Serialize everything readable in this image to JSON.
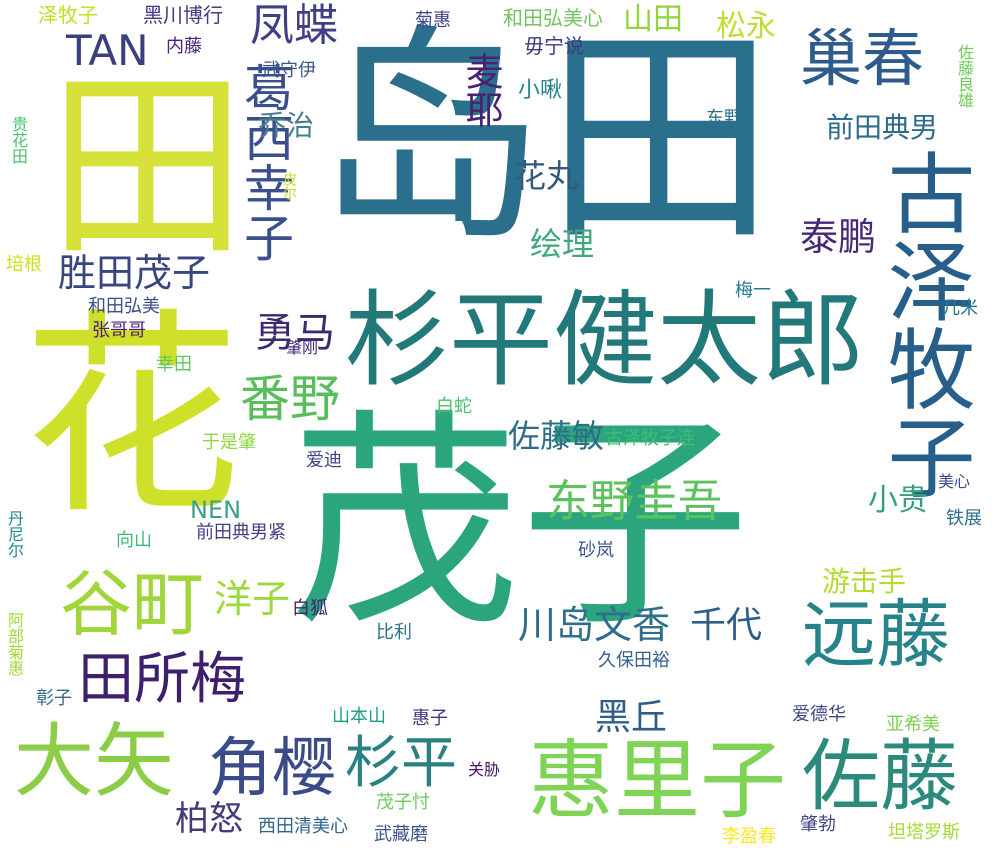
{
  "words": [
    {
      "text": "茂子",
      "color": "#2ba57e",
      "vertical": false
    },
    {
      "text": "岛田",
      "color": "#2a6f8c",
      "vertical": false
    },
    {
      "text": "田",
      "color": "#d6e23a",
      "vertical": true
    },
    {
      "text": "花",
      "color": "#cfe02b",
      "vertical": true
    },
    {
      "text": "杉平健太郎",
      "color": "#23797a",
      "vertical": false
    },
    {
      "text": "古泽牧子",
      "color": "#275f8a",
      "vertical": true
    },
    {
      "text": "惠里子",
      "color": "#7fd456",
      "vertical": false
    },
    {
      "text": "佐藤",
      "color": "#2c8a7c",
      "vertical": false
    },
    {
      "text": "大矢",
      "color": "#8ccd48",
      "vertical": false
    },
    {
      "text": "远藤",
      "color": "#27838a",
      "vertical": false
    },
    {
      "text": "巢春",
      "color": "#2e5b8c",
      "vertical": false
    },
    {
      "text": "谷町",
      "color": "#a1d53a",
      "vertical": false
    },
    {
      "text": "角樱",
      "color": "#3b4b89",
      "vertical": false
    },
    {
      "text": "葛西幸子",
      "color": "#3b4f8c",
      "vertical": true
    },
    {
      "text": "田所梅",
      "color": "#3d1f6e",
      "vertical": false
    },
    {
      "text": "杉平",
      "color": "#2a8182",
      "vertical": false
    },
    {
      "text": "番野",
      "color": "#59bd5b",
      "vertical": false
    },
    {
      "text": "凤蝶",
      "color": "#413e86",
      "vertical": false
    },
    {
      "text": "胜田茂子",
      "color": "#38457f",
      "vertical": false
    },
    {
      "text": "东野圭吾",
      "color": "#5ec25c",
      "vertical": false
    },
    {
      "text": "川岛文香",
      "color": "#2e6e8b",
      "vertical": false
    },
    {
      "text": "TAN",
      "color": "#3b3f7d",
      "vertical": false
    },
    {
      "text": "勇马",
      "color": "#3b2a6f",
      "vertical": false
    },
    {
      "text": "麦耶",
      "color": "#482374",
      "vertical": true
    },
    {
      "text": "前田典男",
      "color": "#2f6c8b",
      "vertical": false
    },
    {
      "text": "泰鹏",
      "color": "#482777",
      "vertical": false
    },
    {
      "text": "花丸",
      "color": "#35597a",
      "vertical": false
    },
    {
      "text": "绘理",
      "color": "#41a87d",
      "vertical": false
    },
    {
      "text": "佐藤敏",
      "color": "#2d6d8a",
      "vertical": false
    },
    {
      "text": "黑丘",
      "color": "#2f5d85",
      "vertical": false
    },
    {
      "text": "千代",
      "color": "#2f5d8a",
      "vertical": false
    },
    {
      "text": "洋子",
      "color": "#9dd93b",
      "vertical": false
    },
    {
      "text": "柏怒",
      "color": "#3f3b7c",
      "vertical": false
    },
    {
      "text": "山田",
      "color": "#95d240",
      "vertical": false
    },
    {
      "text": "松永",
      "color": "#c0dd32",
      "vertical": false
    },
    {
      "text": "乔治",
      "color": "#457d8c",
      "vertical": false
    },
    {
      "text": "小贵",
      "color": "#34a07e",
      "vertical": false
    },
    {
      "text": "游击手",
      "color": "#b3dc32",
      "vertical": false
    },
    {
      "text": "NEN",
      "color": "#3aa287",
      "vertical": false
    },
    {
      "text": "泽牧子",
      "color": "#c2df23",
      "vertical": false
    },
    {
      "text": "黑川博行",
      "color": "#443983",
      "vertical": false
    },
    {
      "text": "菊惠",
      "color": "#404688",
      "vertical": false
    },
    {
      "text": "和田弘美心",
      "color": "#74c463",
      "vertical": false
    },
    {
      "text": "内藤",
      "color": "#48237a",
      "vertical": false
    },
    {
      "text": "毋宁说",
      "color": "#3d3b82",
      "vertical": false
    },
    {
      "text": "小啾",
      "color": "#26828e",
      "vertical": false
    },
    {
      "text": "武守伊",
      "color": "#39568c",
      "vertical": false
    },
    {
      "text": "东野",
      "color": "#2c728e",
      "vertical": false
    },
    {
      "text": "佐藤良雄",
      "color": "#6ece58",
      "vertical": true
    },
    {
      "text": "贵花田",
      "color": "#4ac16d",
      "vertical": true
    },
    {
      "text": "皮尔",
      "color": "#c2df23",
      "vertical": true
    },
    {
      "text": "培根",
      "color": "#cde11d",
      "vertical": false
    },
    {
      "text": "和田弘美",
      "color": "#3c4f8a",
      "vertical": false
    },
    {
      "text": "梅一",
      "color": "#29798e",
      "vertical": false
    },
    {
      "text": "几米",
      "color": "#2a778e",
      "vertical": false
    },
    {
      "text": "张哥哥",
      "color": "#482173",
      "vertical": false
    },
    {
      "text": "肇刚",
      "color": "#482878",
      "vertical": false
    },
    {
      "text": "幸田",
      "color": "#5ec962",
      "vertical": false
    },
    {
      "text": "白蛇",
      "color": "#4ac16d",
      "vertical": false
    },
    {
      "text": "于是肇",
      "color": "#8fd744",
      "vertical": false
    },
    {
      "text": "古泽牧子连",
      "color": "#3fbc73",
      "vertical": false
    },
    {
      "text": "爱迪",
      "color": "#414487",
      "vertical": false
    },
    {
      "text": "美心",
      "color": "#3e4a89",
      "vertical": false
    },
    {
      "text": "丹尼尔",
      "color": "#238a8d",
      "vertical": true
    },
    {
      "text": "铁展",
      "color": "#2e6e8e",
      "vertical": false
    },
    {
      "text": "前田典男紧",
      "color": "#433e85",
      "vertical": false
    },
    {
      "text": "向山",
      "color": "#3bbb75",
      "vertical": false
    },
    {
      "text": "砂岚",
      "color": "#3b528b",
      "vertical": false
    },
    {
      "text": "阿部菊惠",
      "color": "#a0da39",
      "vertical": true
    },
    {
      "text": "白狐",
      "color": "#482071",
      "vertical": false
    },
    {
      "text": "比利",
      "color": "#2c728e",
      "vertical": false
    },
    {
      "text": "久保田裕",
      "color": "#355f8d",
      "vertical": false
    },
    {
      "text": "彰子",
      "color": "#2f6c8e",
      "vertical": false
    },
    {
      "text": "山本山",
      "color": "#1f9e89",
      "vertical": false
    },
    {
      "text": "惠子",
      "color": "#46327e",
      "vertical": false
    },
    {
      "text": "爱德华",
      "color": "#3e4989",
      "vertical": false
    },
    {
      "text": "亚希美",
      "color": "#7ad151",
      "vertical": false
    },
    {
      "text": "关胁",
      "color": "#471365",
      "vertical": false
    },
    {
      "text": "茂子忖",
      "color": "#6ccd5a",
      "vertical": false
    },
    {
      "text": "西田清美心",
      "color": "#32658e",
      "vertical": false
    },
    {
      "text": "武藏磨",
      "color": "#3b528b",
      "vertical": false
    },
    {
      "text": "李盈春",
      "color": "#fde725",
      "vertical": false
    },
    {
      "text": "肇勃",
      "color": "#404688",
      "vertical": false
    },
    {
      "text": "坦塔罗斯",
      "color": "#a5db36",
      "vertical": false
    }
  ]
}
